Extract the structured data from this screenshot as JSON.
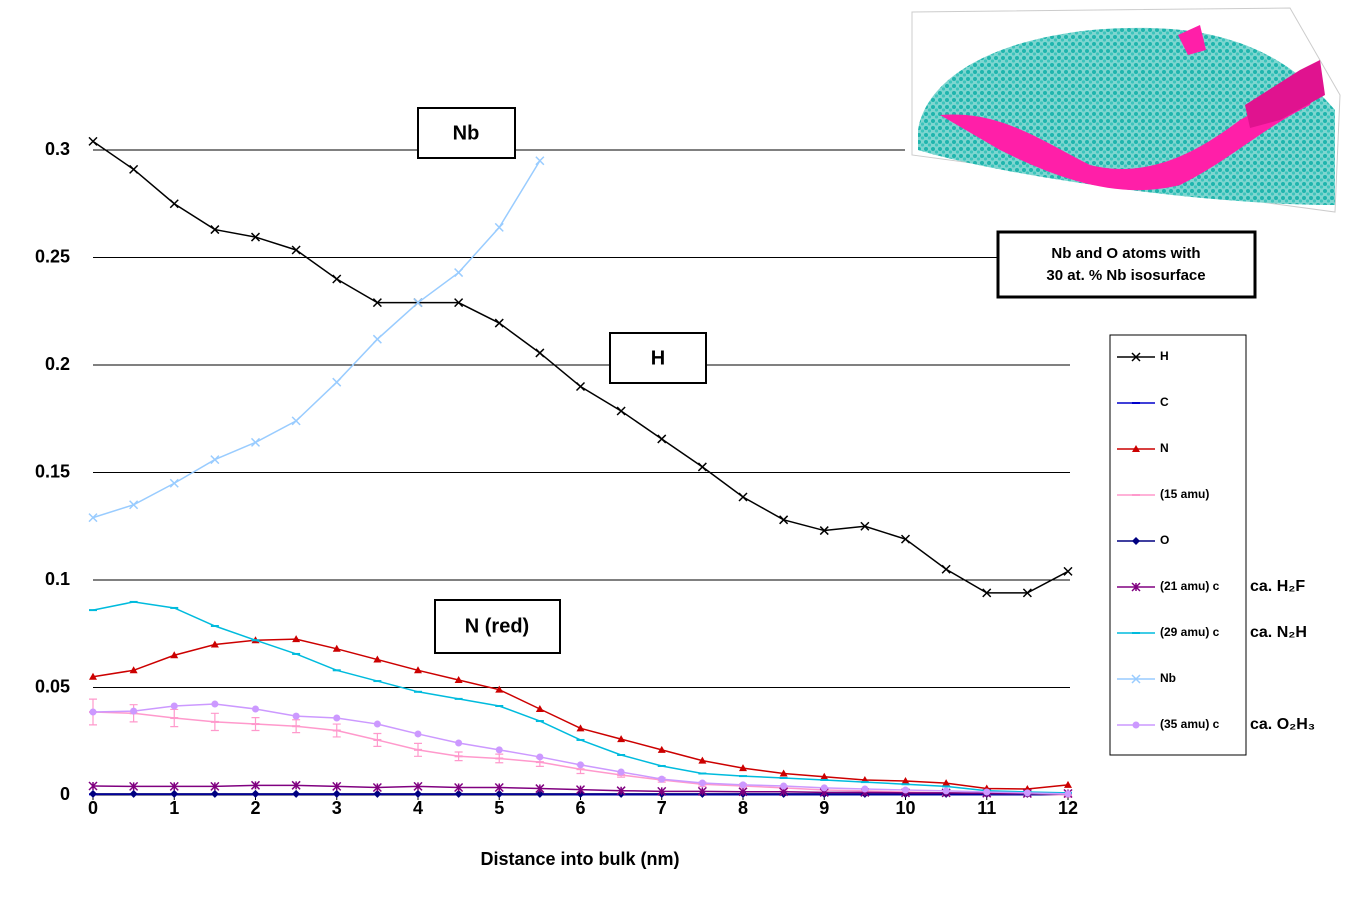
{
  "chart_data": {
    "type": "line",
    "x_label": "Distance into bulk (nm)",
    "x": [
      0,
      0.5,
      1,
      1.5,
      2,
      2.5,
      3,
      3.5,
      4,
      4.5,
      5,
      5.5,
      6,
      6.5,
      7,
      7.5,
      8,
      8.5,
      9,
      9.5,
      10,
      10.5,
      11,
      11.5,
      12
    ],
    "xlim": [
      0,
      12
    ],
    "xticks": [
      0,
      1,
      2,
      3,
      4,
      5,
      6,
      7,
      8,
      9,
      10,
      11,
      12
    ],
    "ylim": [
      0,
      0.3
    ],
    "yticks": [
      0,
      0.05,
      0.1,
      0.15,
      0.2,
      0.25,
      0.3
    ],
    "grid": true,
    "series": [
      {
        "name": "H",
        "color": "#000000",
        "marker": "x",
        "values": [
          0.304,
          0.291,
          0.275,
          0.263,
          0.2595,
          0.2535,
          0.24,
          0.229,
          0.229,
          0.229,
          0.2195,
          0.2056,
          0.19,
          0.1786,
          0.1656,
          0.1526,
          0.1386,
          0.128,
          0.123,
          0.125,
          0.119,
          0.105,
          0.094,
          0.094,
          0.104
        ]
      },
      {
        "name": "C",
        "color": "#0000cc",
        "marker": "dash",
        "values": [
          0.0003,
          0.0003,
          0.0003,
          0.0003,
          0.0003,
          0.0003,
          0.0003,
          0.0003,
          0.0003,
          0.0003,
          0.0003,
          0.0003,
          0.0002,
          0.0002,
          0.0002,
          0.0002,
          0.0002,
          0.0002,
          0.0002,
          0.0002,
          0.0002,
          0.0002,
          0.0002,
          0.0002,
          0.0002
        ]
      },
      {
        "name": "N",
        "color": "#cc0000",
        "marker": "triangle",
        "values": [
          0.055,
          0.058,
          0.065,
          0.07,
          0.072,
          0.0725,
          0.068,
          0.063,
          0.058,
          0.0535,
          0.049,
          0.04,
          0.031,
          0.026,
          0.021,
          0.016,
          0.0125,
          0.01,
          0.0085,
          0.007,
          0.0065,
          0.0055,
          0.003,
          0.0028,
          0.0047
        ]
      },
      {
        "name": "(15 amu)",
        "color": "#ff99cc",
        "marker": "dash",
        "values": [
          0.0386,
          0.038,
          0.0358,
          0.034,
          0.033,
          0.032,
          0.03,
          0.0256,
          0.021,
          0.018,
          0.017,
          0.0153,
          0.012,
          0.0093,
          0.007,
          0.005,
          0.0042,
          0.0033,
          0.0023,
          0.0019,
          0.0014,
          0.001,
          0.0005,
          0.0005,
          0
        ],
        "errors": [
          0.006,
          0.004,
          0.004,
          0.004,
          0.003,
          0.003,
          0.003,
          0.003,
          0.003,
          0.002,
          0.002,
          0.002,
          0.002,
          0.001,
          0.001,
          0.001,
          0.001,
          0.001,
          0.001,
          0.001,
          0.001,
          0.001,
          0.001,
          0.001,
          0.001
        ]
      },
      {
        "name": "O",
        "color": "#000080",
        "marker": "diamond",
        "values": [
          0.0005,
          0.0005,
          0.0005,
          0.0005,
          0.0005,
          0.0005,
          0.0005,
          0.0005,
          0.0005,
          0.0005,
          0.0005,
          0.0005,
          0.0005,
          0.0005,
          0.0005,
          0.0005,
          0.0005,
          0.0005,
          0.0005,
          0.0005,
          0.0005,
          0.0005,
          0.0005,
          0.0005,
          0.0005
        ]
      },
      {
        "name": "(21 amu) c",
        "color": "#800080",
        "marker": "asterisk",
        "note": "ca. H₂F",
        "values": [
          0.0042,
          0.004,
          0.004,
          0.004,
          0.0045,
          0.0045,
          0.004,
          0.0035,
          0.004,
          0.0035,
          0.0035,
          0.003,
          0.0025,
          0.002,
          0.0017,
          0.0017,
          0.0015,
          0.0015,
          0.0012,
          0.0012,
          0.001,
          0.001,
          0.0008,
          0.0007,
          0.0007
        ]
      },
      {
        "name": "(29 amu) c",
        "color": "#00bbdd",
        "marker": "dash",
        "note": "ca. N₂H",
        "values": [
          0.086,
          0.0898,
          0.087,
          0.0786,
          0.072,
          0.0656,
          0.058,
          0.053,
          0.048,
          0.0447,
          0.0414,
          0.0344,
          0.0256,
          0.0186,
          0.0135,
          0.01,
          0.0088,
          0.0079,
          0.007,
          0.006,
          0.005,
          0.004,
          0.002,
          0.0014,
          0.001
        ]
      },
      {
        "name": "Nb",
        "color": "#99ccff",
        "marker": "x",
        "values": [
          0.129,
          0.135,
          0.145,
          0.156,
          0.164,
          0.174,
          0.192,
          0.212,
          0.229,
          0.243,
          0.264,
          0.295,
          null,
          null,
          null,
          null,
          null,
          null,
          null,
          null,
          null,
          null,
          null,
          null,
          null
        ]
      },
      {
        "name": "(35 amu) c",
        "color": "#cc99ff",
        "marker": "circle",
        "note": "ca. O₂H₃",
        "values": [
          0.0386,
          0.039,
          0.0414,
          0.0423,
          0.04,
          0.0367,
          0.0358,
          0.033,
          0.0284,
          0.0242,
          0.021,
          0.0177,
          0.014,
          0.0107,
          0.0074,
          0.0056,
          0.0047,
          0.0042,
          0.0033,
          0.0028,
          0.0023,
          0.0019,
          0.0014,
          0.001,
          0.0005
        ]
      }
    ],
    "annotations": [
      "Nb",
      "H",
      "N (red)",
      "Nb and O atoms with",
      "30 at. % Nb isosurface"
    ]
  }
}
